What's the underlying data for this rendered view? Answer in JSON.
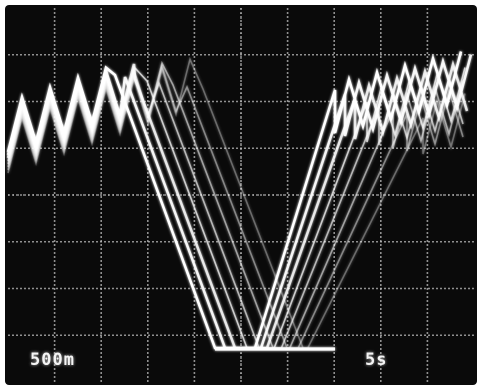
{
  "screen": {
    "background_color": "#0a0a0a",
    "bezel_color": "#ffffff",
    "grid_color": "#bdbdbd",
    "trace_color": "#ffffff",
    "divisions_x": 10,
    "divisions_y": 8
  },
  "readouts": {
    "left_label": "500m",
    "right_label": "5s"
  }
}
